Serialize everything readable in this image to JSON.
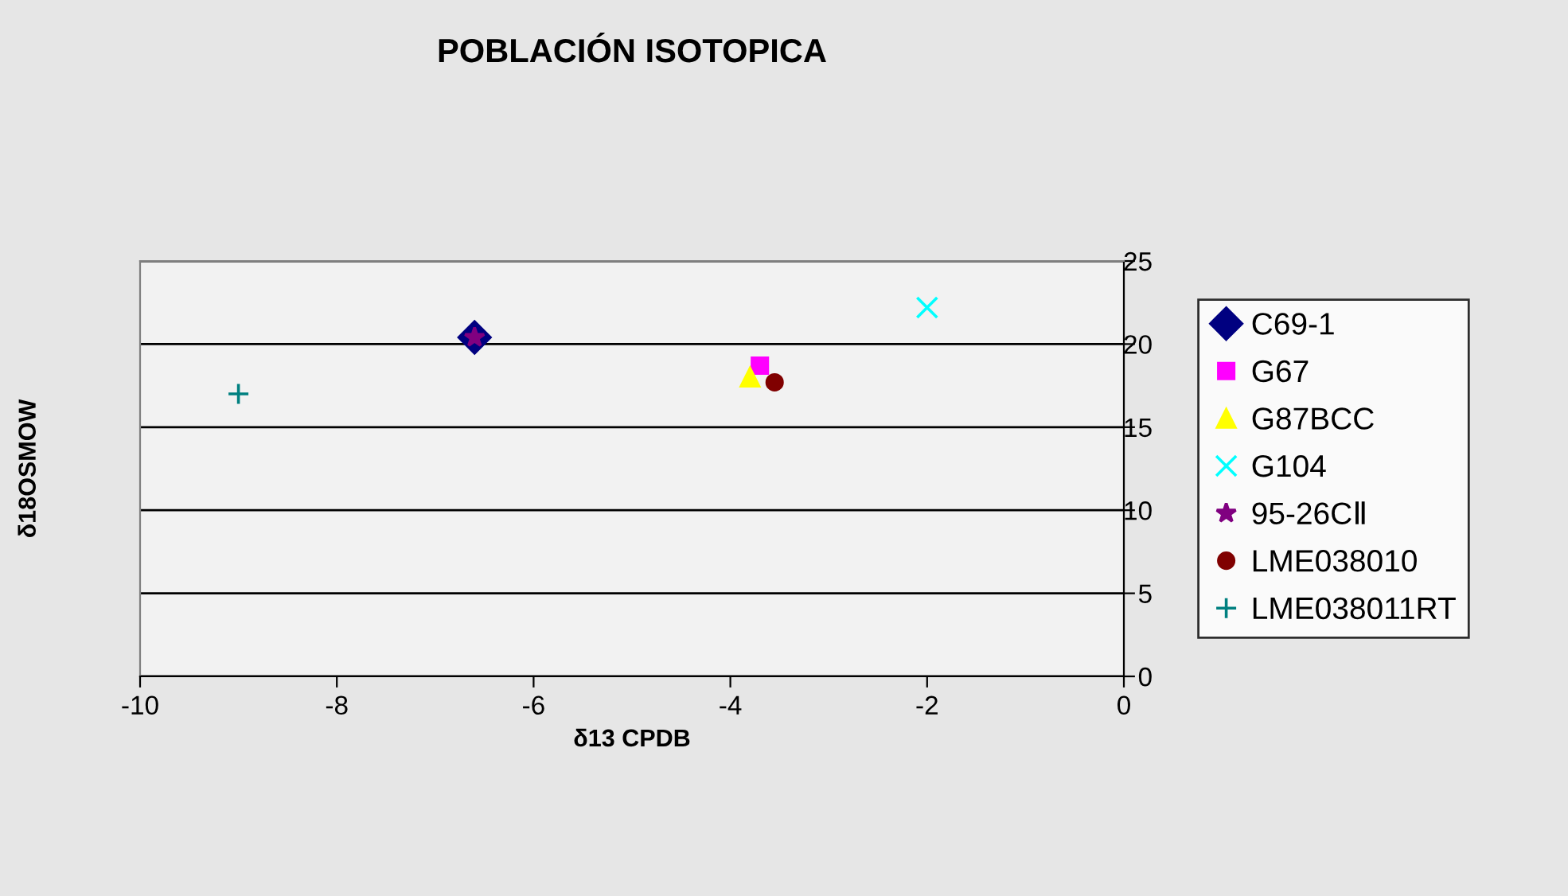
{
  "chart_data": {
    "type": "scatter",
    "title": "POBLACIÓN ISOTOPICA",
    "xlabel": "δ13 CPDB",
    "ylabel": "δ18OSMOW",
    "xlim": [
      -10,
      0
    ],
    "xticks": [
      -10,
      -8,
      -6,
      -4,
      -2,
      0
    ],
    "ylim": [
      0,
      25
    ],
    "yticks": [
      0,
      5,
      10,
      15,
      20,
      25
    ],
    "grid": "y",
    "legend": "right",
    "series": [
      {
        "name": "C69-1",
        "color": "#000080",
        "marker": "diamond",
        "x": [
          -6.6
        ],
        "values": [
          20.4
        ]
      },
      {
        "name": "G67",
        "color": "#ff00ff",
        "marker": "square",
        "x": [
          -3.7
        ],
        "values": [
          18.7
        ]
      },
      {
        "name": "G87BCC",
        "color": "#ffff00",
        "marker": "triangle",
        "x": [
          -3.8
        ],
        "values": [
          18.0
        ]
      },
      {
        "name": "G104",
        "color": "#00ffff",
        "marker": "x",
        "x": [
          -2.0
        ],
        "values": [
          22.2
        ]
      },
      {
        "name": "95-26CⅡ",
        "color": "#800080",
        "marker": "star",
        "x": [
          -6.6
        ],
        "values": [
          20.4
        ]
      },
      {
        "name": "LME038010",
        "color": "#800000",
        "marker": "circle",
        "x": [
          -3.55
        ],
        "values": [
          17.7
        ]
      },
      {
        "name": "LME038011RT",
        "color": "#008080",
        "marker": "cross",
        "x": [
          -9.0
        ],
        "values": [
          17.0
        ]
      }
    ]
  }
}
